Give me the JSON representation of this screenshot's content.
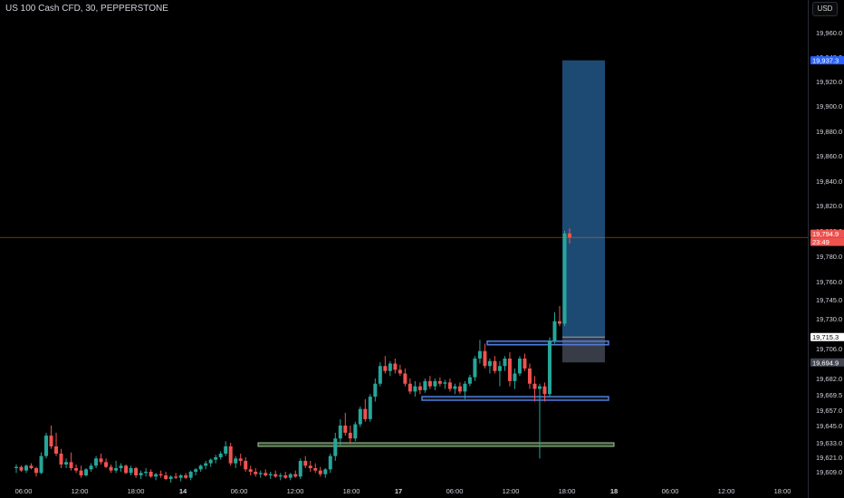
{
  "header": {
    "title": "US 100 Cash CFD, 30, PEPPERSTONE"
  },
  "price_axis": {
    "currency": "USD"
  },
  "colors": {
    "up": "#26a69a",
    "down": "#ef5350",
    "target_zone": "#1f4e79",
    "stop_zone": "#3a3f4b",
    "zone_outline_blue": "#4f7bd6",
    "zone_fill_green": "#2f4a2a",
    "last_price_line": "#ef6c00"
  },
  "chart_data": {
    "type": "candlestick",
    "title": "US 100 Cash CFD, 30, PEPPERSTONE",
    "xlabel": "",
    "ylabel": "",
    "ylim": [
      19600,
      19990
    ],
    "y_ticks": [
      19960.0,
      19940.0,
      19920.0,
      19900.0,
      19880.0,
      19860.0,
      19840.0,
      19820.0,
      19800.0,
      19780.0,
      19760.0,
      19745.0,
      19730.0,
      19706.0,
      19682.0,
      19669.5,
      19657.0,
      19645.0,
      19633.0,
      19621.0,
      19609.0
    ],
    "x_ticks": [
      "06:00",
      "12:00",
      "18:00",
      "14",
      "06:00",
      "12:00",
      "18:00",
      "17",
      "06:00",
      "12:00",
      "18:00",
      "18",
      "06:00",
      "12:00",
      "18:00"
    ],
    "price_labels": [
      {
        "value": "19,937.3",
        "kind": "target"
      },
      {
        "value": "19,794.9",
        "kind": "last"
      },
      {
        "value": "23:49",
        "kind": "countdown"
      },
      {
        "value": "19,715.3",
        "kind": "entry"
      },
      {
        "value": "19,694.9",
        "kind": "stop"
      }
    ],
    "last_price": 19794.9,
    "candles": [
      [
        19612,
        19615,
        19608,
        19613
      ],
      [
        19613,
        19614,
        19609,
        19610
      ],
      [
        19610,
        19615,
        19608,
        19614
      ],
      [
        19614,
        19616,
        19611,
        19612
      ],
      [
        19612,
        19613,
        19605,
        19608
      ],
      [
        19608,
        19625,
        19607,
        19622
      ],
      [
        19622,
        19640,
        19620,
        19638
      ],
      [
        19638,
        19645,
        19628,
        19630
      ],
      [
        19630,
        19640,
        19622,
        19624
      ],
      [
        19624,
        19628,
        19612,
        19615
      ],
      [
        19615,
        19620,
        19612,
        19617
      ],
      [
        19617,
        19625,
        19610,
        19612
      ],
      [
        19612,
        19615,
        19608,
        19610
      ],
      [
        19610,
        19614,
        19604,
        19606
      ],
      [
        19606,
        19612,
        19605,
        19611
      ],
      [
        19611,
        19616,
        19609,
        19614
      ],
      [
        19614,
        19622,
        19612,
        19620
      ],
      [
        19620,
        19624,
        19615,
        19617
      ],
      [
        19617,
        19620,
        19612,
        19613
      ],
      [
        19613,
        19615,
        19608,
        19610
      ],
      [
        19610,
        19618,
        19608,
        19612
      ],
      [
        19612,
        19616,
        19609,
        19614
      ],
      [
        19614,
        19615,
        19607,
        19608
      ],
      [
        19608,
        19614,
        19606,
        19612
      ],
      [
        19612,
        19613,
        19604,
        19606
      ],
      [
        19606,
        19610,
        19603,
        19608
      ],
      [
        19608,
        19612,
        19605,
        19609
      ],
      [
        19609,
        19611,
        19604,
        19605
      ],
      [
        19605,
        19608,
        19602,
        19607
      ],
      [
        19607,
        19610,
        19604,
        19606
      ],
      [
        19606,
        19609,
        19602,
        19603
      ],
      [
        19603,
        19606,
        19600,
        19605
      ],
      [
        19605,
        19608,
        19603,
        19604
      ],
      [
        19604,
        19607,
        19601,
        19606
      ],
      [
        19606,
        19608,
        19603,
        19604
      ],
      [
        19604,
        19610,
        19602,
        19609
      ],
      [
        19609,
        19612,
        19606,
        19611
      ],
      [
        19611,
        19615,
        19609,
        19614
      ],
      [
        19614,
        19618,
        19611,
        19616
      ],
      [
        19616,
        19620,
        19613,
        19619
      ],
      [
        19619,
        19623,
        19616,
        19621
      ],
      [
        19621,
        19626,
        19619,
        19624
      ],
      [
        19624,
        19634,
        19622,
        19630
      ],
      [
        19630,
        19633,
        19614,
        19616
      ],
      [
        19616,
        19622,
        19612,
        19620
      ],
      [
        19620,
        19624,
        19614,
        19618
      ],
      [
        19618,
        19621,
        19609,
        19611
      ],
      [
        19611,
        19614,
        19606,
        19609
      ],
      [
        19609,
        19612,
        19605,
        19607
      ],
      [
        19607,
        19610,
        19604,
        19608
      ],
      [
        19608,
        19611,
        19605,
        19606
      ],
      [
        19606,
        19609,
        19603,
        19607
      ],
      [
        19607,
        19610,
        19604,
        19605
      ],
      [
        19605,
        19608,
        19602,
        19606
      ],
      [
        19606,
        19609,
        19603,
        19604
      ],
      [
        19604,
        19608,
        19602,
        19607
      ],
      [
        19607,
        19610,
        19604,
        19605
      ],
      [
        19605,
        19620,
        19603,
        19618
      ],
      [
        19618,
        19622,
        19612,
        19614
      ],
      [
        19614,
        19618,
        19609,
        19612
      ],
      [
        19612,
        19616,
        19608,
        19610
      ],
      [
        19610,
        19613,
        19605,
        19607
      ],
      [
        19607,
        19612,
        19604,
        19611
      ],
      [
        19611,
        19624,
        19608,
        19622
      ],
      [
        19622,
        19640,
        19618,
        19636
      ],
      [
        19636,
        19650,
        19630,
        19645
      ],
      [
        19645,
        19655,
        19638,
        19640
      ],
      [
        19640,
        19645,
        19632,
        19636
      ],
      [
        19636,
        19648,
        19634,
        19646
      ],
      [
        19646,
        19660,
        19644,
        19658
      ],
      [
        19658,
        19666,
        19648,
        19650
      ],
      [
        19650,
        19670,
        19648,
        19668
      ],
      [
        19668,
        19682,
        19664,
        19678
      ],
      [
        19678,
        19695,
        19676,
        19692
      ],
      [
        19692,
        19700,
        19686,
        19688
      ],
      [
        19688,
        19696,
        19684,
        19694
      ],
      [
        19694,
        19698,
        19686,
        19689
      ],
      [
        19689,
        19693,
        19684,
        19686
      ],
      [
        19686,
        19690,
        19676,
        19678
      ],
      [
        19678,
        19682,
        19670,
        19672
      ],
      [
        19672,
        19680,
        19668,
        19676
      ],
      [
        19676,
        19679,
        19670,
        19673
      ],
      [
        19673,
        19682,
        19671,
        19680
      ],
      [
        19680,
        19684,
        19674,
        19676
      ],
      [
        19676,
        19682,
        19673,
        19680
      ],
      [
        19680,
        19683,
        19676,
        19678
      ],
      [
        19678,
        19681,
        19674,
        19679
      ],
      [
        19679,
        19682,
        19672,
        19674
      ],
      [
        19674,
        19678,
        19670,
        19676
      ],
      [
        19676,
        19679,
        19670,
        19672
      ],
      [
        19672,
        19680,
        19666,
        19678
      ],
      [
        19678,
        19685,
        19676,
        19683
      ],
      [
        19683,
        19700,
        19680,
        19698
      ],
      [
        19698,
        19713,
        19694,
        19704
      ],
      [
        19704,
        19710,
        19690,
        19692
      ],
      [
        19692,
        19698,
        19686,
        19696
      ],
      [
        19696,
        19700,
        19686,
        19688
      ],
      [
        19688,
        19696,
        19676,
        19692
      ],
      [
        19692,
        19700,
        19688,
        19698
      ],
      [
        19698,
        19703,
        19676,
        19680
      ],
      [
        19680,
        19690,
        19674,
        19686
      ],
      [
        19686,
        19700,
        19684,
        19698
      ],
      [
        19698,
        19702,
        19688,
        19690
      ],
      [
        19690,
        19694,
        19674,
        19678
      ],
      [
        19678,
        19684,
        19664,
        19674
      ],
      [
        19674,
        19678,
        19620,
        19676
      ],
      [
        19676,
        19679,
        19664,
        19670
      ],
      [
        19670,
        19715,
        19668,
        19712
      ],
      [
        19712,
        19735,
        19710,
        19728
      ],
      [
        19728,
        19740,
        19724,
        19726
      ],
      [
        19726,
        19800,
        19724,
        19798
      ],
      [
        19798,
        19802,
        19790,
        19795
      ]
    ],
    "annotations": [
      {
        "type": "long-position",
        "entry": 19715.3,
        "target": 19937.3,
        "stop": 19694.9
      },
      {
        "type": "zone",
        "label": "",
        "from": 19710,
        "to": 19712
      },
      {
        "type": "zone",
        "label": "",
        "from": 19666,
        "to": 19668
      },
      {
        "type": "zone",
        "label": "",
        "from": 19630,
        "to": 19633
      }
    ]
  }
}
